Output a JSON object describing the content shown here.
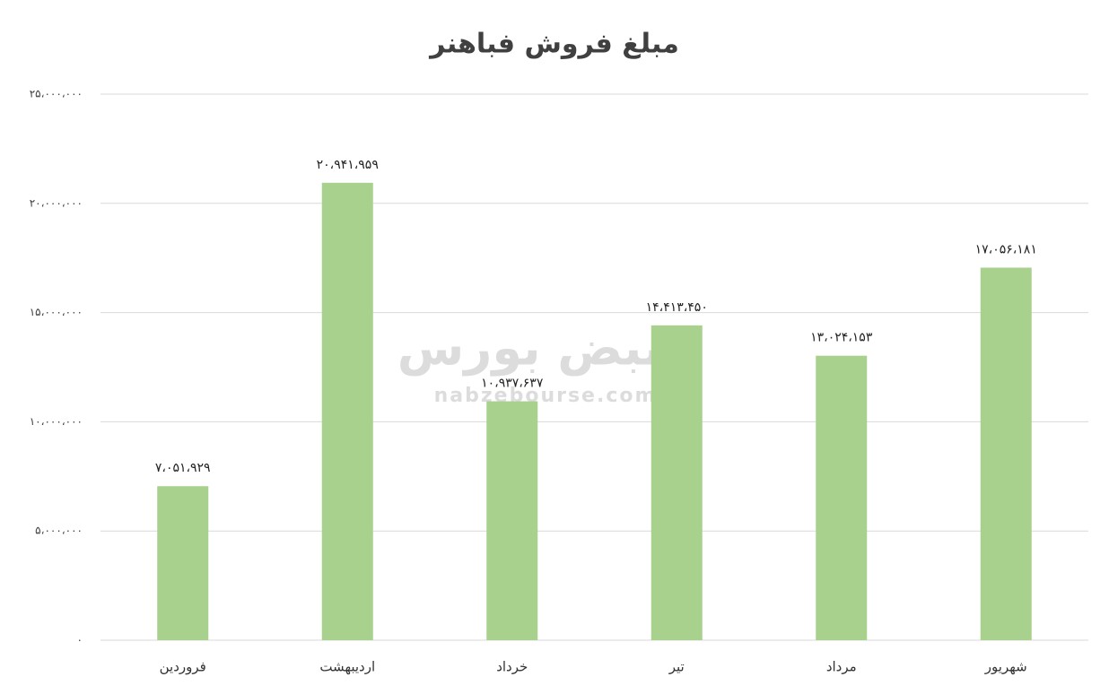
{
  "chart_data": {
    "type": "bar",
    "title": "مبلغ فروش فباهنر",
    "watermark": [
      "نبض بورس",
      "nabzebourse.com"
    ],
    "categories": [
      "فروردین",
      "اردیبهشت",
      "خرداد",
      "تیر",
      "مرداد",
      "شهریور"
    ],
    "values": [
      7051929,
      20941959,
      10937637,
      14413450,
      13024153,
      17056181
    ],
    "value_labels": [
      "۷،۰۵۱،۹۲۹",
      "۲۰،۹۴۱،۹۵۹",
      "۱۰،۹۳۷،۶۳۷",
      "۱۴،۴۱۳،۴۵۰",
      "۱۳،۰۲۴،۱۵۳",
      "۱۷،۰۵۶،۱۸۱"
    ],
    "color": "#a9d18e",
    "ylim": [
      0,
      25000000
    ],
    "yticks": [
      {
        "value": 0,
        "label": "۰"
      },
      {
        "value": 5000000,
        "label": "۵،۰۰۰،۰۰۰"
      },
      {
        "value": 10000000,
        "label": "۱۰،۰۰۰،۰۰۰"
      },
      {
        "value": 15000000,
        "label": "۱۵،۰۰۰،۰۰۰"
      },
      {
        "value": 20000000,
        "label": "۲۰،۰۰۰،۰۰۰"
      },
      {
        "value": 25000000,
        "label": "۲۵،۰۰۰،۰۰۰"
      }
    ],
    "grid": true
  }
}
